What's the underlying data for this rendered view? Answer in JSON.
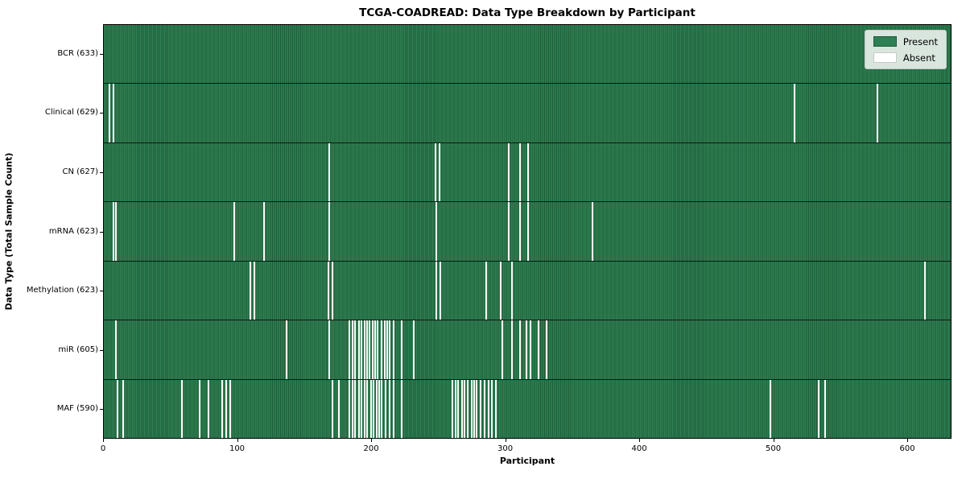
{
  "figure": {
    "title": "TCGA-COADREAD: Data Type Breakdown by Participant",
    "xlabel": "Participant",
    "ylabel": "Data Type (Total Sample Count)"
  },
  "legend": {
    "position": "upper right",
    "items": [
      {
        "label": "Present",
        "color": "#2e8054",
        "border": "#1f5c3a"
      },
      {
        "label": "Absent",
        "color": "#ffffff",
        "border": "#c9c9c9"
      }
    ]
  },
  "chart_data": {
    "type": "heatmap",
    "title": "TCGA-COADREAD: Data Type Breakdown by Participant",
    "xlabel": "Participant",
    "ylabel": "Data Type (Total Sample Count)",
    "xlim": [
      0,
      633
    ],
    "x_ticks": [
      0,
      100,
      200,
      300,
      400,
      500,
      600
    ],
    "n_participants": 633,
    "present_color": "#2e7e50",
    "present_color_dark": "#1f5c3a",
    "absent_color": "#fbfbf8",
    "grid": false,
    "legend_entries": [
      "Present",
      "Absent"
    ],
    "rows": [
      {
        "name": "bcr",
        "label": "BCR (633)",
        "data_type": "BCR",
        "present_count": 633,
        "absent_indices": []
      },
      {
        "name": "clinical",
        "label": "Clinical (629)",
        "data_type": "Clinical",
        "present_count": 629,
        "absent_indices": [
          4,
          7,
          515,
          577
        ]
      },
      {
        "name": "cn",
        "label": "CN (627)",
        "data_type": "CN",
        "present_count": 627,
        "absent_indices": [
          168,
          247,
          250,
          302,
          310,
          316
        ]
      },
      {
        "name": "mrna",
        "label": "mRNA (623)",
        "data_type": "mRNA",
        "present_count": 623,
        "absent_indices": [
          7,
          9,
          97,
          119,
          168,
          248,
          302,
          310,
          316,
          364
        ]
      },
      {
        "name": "methylation",
        "label": "Methylation (623)",
        "data_type": "Methylation",
        "present_count": 623,
        "absent_indices": [
          109,
          112,
          167,
          170,
          248,
          251,
          285,
          296,
          304,
          612
        ]
      },
      {
        "name": "mir",
        "label": "miR (605)",
        "data_type": "miR",
        "present_count": 605,
        "absent_indices": [
          9,
          136,
          168,
          183,
          185,
          187,
          190,
          192,
          194,
          196,
          198,
          200,
          202,
          204,
          207,
          209,
          211,
          213,
          216,
          222,
          231,
          297,
          304,
          310,
          315,
          318,
          324,
          330
        ]
      },
      {
        "name": "maf",
        "label": "MAF (590)",
        "data_type": "MAF",
        "present_count": 590,
        "absent_indices": [
          10,
          14,
          58,
          71,
          78,
          88,
          91,
          94,
          170,
          175,
          183,
          185,
          187,
          190,
          192,
          194,
          196,
          199,
          201,
          203,
          205,
          207,
          210,
          213,
          216,
          222,
          260,
          262,
          264,
          267,
          269,
          271,
          274,
          276,
          278,
          281,
          284,
          287,
          289,
          292,
          497,
          533,
          538
        ]
      }
    ]
  }
}
